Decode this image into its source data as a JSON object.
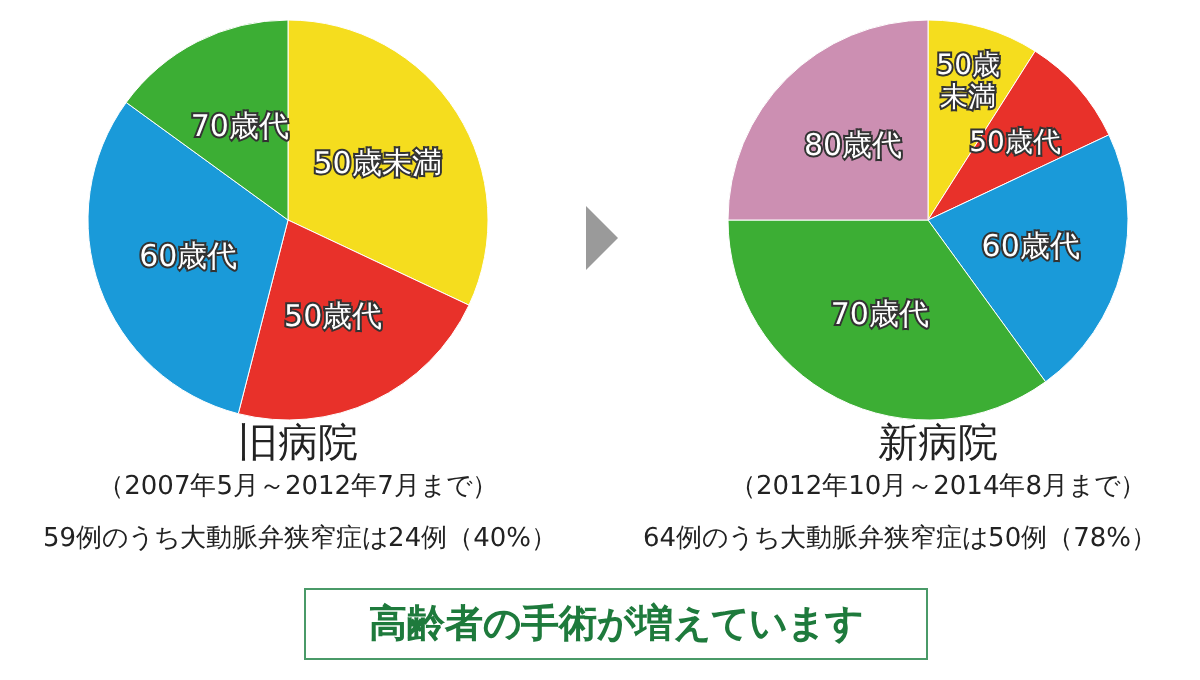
{
  "chart_data": [
    {
      "type": "pie",
      "title": "旧病院",
      "subtitle": "（2007年5月～2012年7月まで）",
      "annotations": [
        "59例のうち大動脈弁狭窄症は24例（40%）"
      ],
      "categories": [
        "50歳未満",
        "50歳代",
        "60歳代",
        "70歳代"
      ],
      "values": [
        32,
        22,
        31,
        15
      ],
      "colors": [
        "#f5dd1e",
        "#e8312a",
        "#1a9ad9",
        "#3cae34"
      ],
      "legend": false
    },
    {
      "type": "pie",
      "title": "新病院",
      "subtitle": "（2012年10月～2014年8月まで）",
      "annotations": [
        "64例のうち大動脈弁狭窄症は50例（78%）",
        "高齢者の手術が増えています"
      ],
      "categories": [
        "50歳未満",
        "50歳代",
        "60歳代",
        "70歳代",
        "80歳代"
      ],
      "values": [
        9,
        9,
        22,
        35,
        25
      ],
      "colors": [
        "#f5dd1e",
        "#e8312a",
        "#1a9ad9",
        "#3cae34",
        "#cc8fb2"
      ],
      "legend": false
    }
  ]
}
